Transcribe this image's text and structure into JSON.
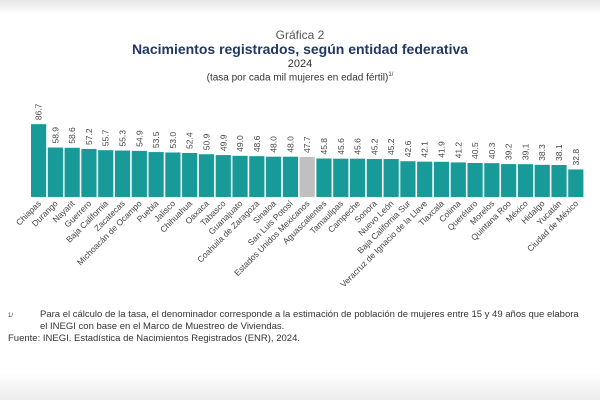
{
  "chart_data": {
    "type": "bar",
    "label": "Gráfica 2",
    "title": "Nacimientos registrados, según entidad federativa",
    "subtitle": "2024",
    "unit": "(tasa por cada mil mujeres en edad fértil)",
    "unit_footnote": "1/",
    "categories": [
      "Chiapas",
      "Durango",
      "Nayarit",
      "Guerrero",
      "Baja California",
      "Zacatecas",
      "Michoacán de Ocampo",
      "Puebla",
      "Jalisco",
      "Chihuahua",
      "Oaxaca",
      "Tabasco",
      "Guanajuato",
      "Coahuila de Zaragoza",
      "Sinaloa",
      "San Luis Potosí",
      "Estados Unidos Mexicanos",
      "Aguascalientes",
      "Tamaulipas",
      "Campeche",
      "Sonora",
      "Nuevo León",
      "Baja California Sur",
      "Veracruz de Ignacio de la Llave",
      "Tlaxcala",
      "Colima",
      "Querétaro",
      "Morelos",
      "Quintana Roo",
      "México",
      "Hidalgo",
      "Yucatán",
      "Ciudad de México"
    ],
    "values": [
      86.7,
      58.9,
      58.6,
      57.2,
      55.7,
      55.3,
      54.9,
      53.5,
      53.0,
      52.4,
      50.9,
      49.9,
      49.0,
      48.6,
      48.0,
      48.0,
      47.7,
      45.8,
      45.6,
      45.6,
      45.2,
      45.2,
      42.6,
      42.1,
      41.9,
      41.2,
      40.5,
      40.3,
      39.2,
      39.1,
      38.3,
      38.1,
      32.8
    ],
    "value_labels": [
      "86.7",
      "58.9",
      "58.6",
      "57.2",
      "55.7",
      "55.3",
      "54.9",
      "53.5",
      "53.0",
      "52.4",
      "50.9",
      "49.9",
      "49.0",
      "48.6",
      "48.0",
      "48.0",
      "47.7",
      "45.8",
      "45.6",
      "45.6",
      "45.2",
      "45.2",
      "42.6",
      "42.1",
      "41.9",
      "41.2",
      "40.5",
      "40.3",
      "39.2",
      "39.1",
      "38.3",
      "38.1",
      "32.8"
    ],
    "highlight_category": "Estados Unidos Mexicanos",
    "colors": {
      "bar": "#179a98",
      "highlight": "#c0c0c0"
    },
    "ylim": [
      0,
      90
    ],
    "grid": false,
    "legend": "none"
  },
  "footnote": {
    "mark": "1/",
    "text": "Para el cálculo de la tasa, el denominador corresponde a la estimación de población de mujeres entre 15 y 49 años que elabora el INEGI con base en el Marco de Muestreo de Viviendas."
  },
  "source": "Fuente: INEGI. Estadística de Nacimientos Registrados (ENR), 2024."
}
